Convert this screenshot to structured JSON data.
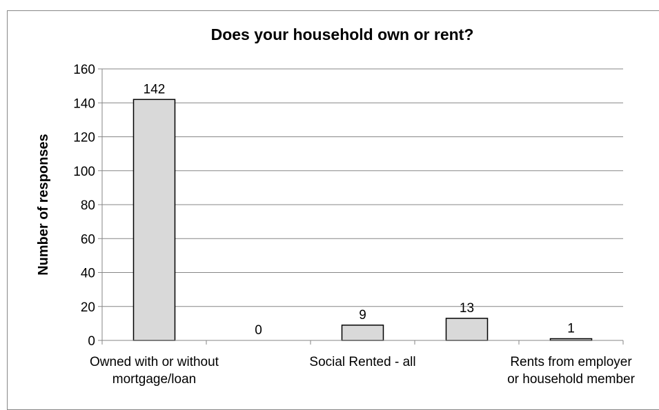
{
  "chart_data": {
    "type": "bar",
    "title": "Does your household own or rent?",
    "xlabel": "",
    "ylabel": "Number of responses",
    "ylim": [
      0,
      160
    ],
    "yticks": [
      0,
      20,
      40,
      60,
      80,
      100,
      120,
      140,
      160
    ],
    "grid": true,
    "legend": "none",
    "categories": [
      "Owned with or without mortgage/loan",
      "",
      "Social Rented - all",
      "",
      "Rents from employer or household member"
    ],
    "category_label_lines": [
      [
        "Owned with or without",
        "mortgage/loan"
      ],
      [],
      [
        "Social Rented - all"
      ],
      [],
      [
        "Rents from employer",
        "or household member"
      ]
    ],
    "values": [
      142,
      0,
      9,
      13,
      1
    ],
    "data_labels": [
      "142",
      "0",
      "9",
      "13",
      "1"
    ],
    "colors": {
      "bar_fill": "#d9d9d9",
      "bar_stroke": "#000000",
      "grid": "#868686",
      "axis": "#868686"
    }
  }
}
